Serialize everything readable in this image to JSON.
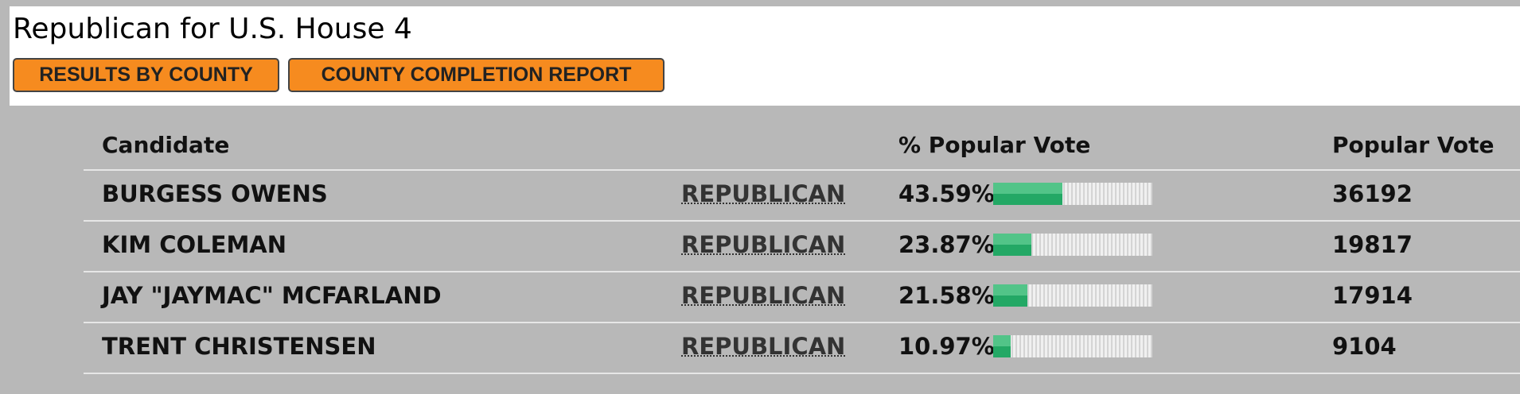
{
  "header": {
    "title": "Republican for U.S. House 4",
    "buttons": [
      "RESULTS BY COUNTY",
      "COUNTY COMPLETION REPORT"
    ]
  },
  "table": {
    "columns": [
      "Candidate",
      "% Popular Vote",
      "Popular Vote"
    ],
    "rows": [
      {
        "candidate": "BURGESS OWENS",
        "party": "REPUBLICAN",
        "percent": {
          "value": 43.59,
          "label": "43.59%"
        },
        "votes": "36192"
      },
      {
        "candidate": "KIM COLEMAN",
        "party": "REPUBLICAN",
        "percent": {
          "value": 23.87,
          "label": "23.87%"
        },
        "votes": "19817"
      },
      {
        "candidate": "JAY \"JAYMAC\" MCFARLAND",
        "party": "REPUBLICAN",
        "percent": {
          "value": 21.58,
          "label": "21.58%"
        },
        "votes": "17914"
      },
      {
        "candidate": "TRENT CHRISTENSEN",
        "party": "REPUBLICAN",
        "percent": {
          "value": 10.97,
          "label": "10.97%"
        },
        "votes": "9104"
      }
    ]
  }
}
